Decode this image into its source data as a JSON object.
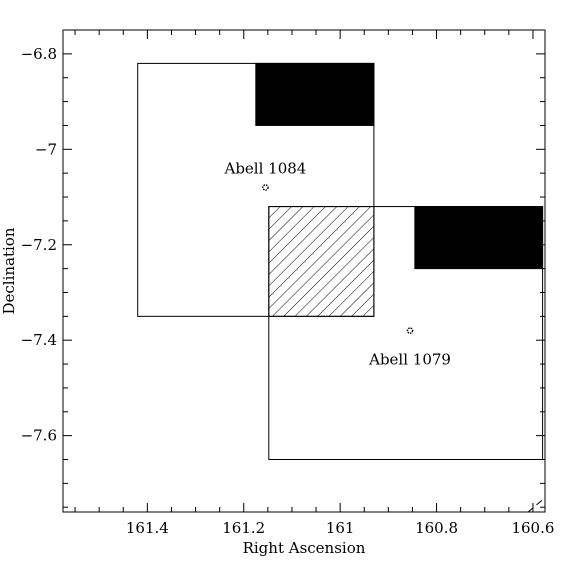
{
  "chart_data": {
    "type": "scatter",
    "title": "",
    "xlabel": "Right Ascension",
    "ylabel": "Declination",
    "xlim": [
      161.575,
      160.575
    ],
    "ylim": [
      -7.76,
      -6.75
    ],
    "x_reversed": true,
    "x_ticks": [
      161.4,
      161.2,
      161.0,
      160.8,
      160.6
    ],
    "x_tick_labels": [
      "161.4",
      "161.2",
      "161",
      "160.8",
      "160.6"
    ],
    "y_ticks": [
      -6.8,
      -7.0,
      -7.2,
      -7.4,
      -7.6
    ],
    "y_tick_labels": [
      "−6.8",
      "−7",
      "−7.2",
      "−7.4",
      "−7.6"
    ],
    "grid": false,
    "fields": [
      {
        "ra_min": 160.93,
        "ra_max": 161.42,
        "dec_min": -7.35,
        "dec_max": -6.82,
        "fill": "none"
      },
      {
        "ra_min": 160.58,
        "ra_max": 161.148,
        "dec_min": -7.65,
        "dec_max": -7.12,
        "fill": "none"
      }
    ],
    "filled_regions": [
      {
        "ra_min": 160.93,
        "ra_max": 161.175,
        "dec_min": -6.95,
        "dec_max": -6.82,
        "fill": "#000000"
      },
      {
        "ra_min": 160.58,
        "ra_max": 160.845,
        "dec_min": -7.25,
        "dec_max": -7.12,
        "fill": "#000000"
      }
    ],
    "hatched_region": {
      "ra_min": 160.93,
      "ra_max": 161.148,
      "dec_min": -7.35,
      "dec_max": -7.12
    },
    "points": [
      {
        "name": "Abell 1084",
        "ra": 161.155,
        "dec": -7.08
      },
      {
        "name": "Abell 1079",
        "ra": 160.855,
        "dec": -7.38
      }
    ],
    "dashed_line": [
      {
        "ra": 160.61,
        "dec": -7.76
      },
      {
        "ra": 160.575,
        "dec": -7.73
      }
    ]
  }
}
